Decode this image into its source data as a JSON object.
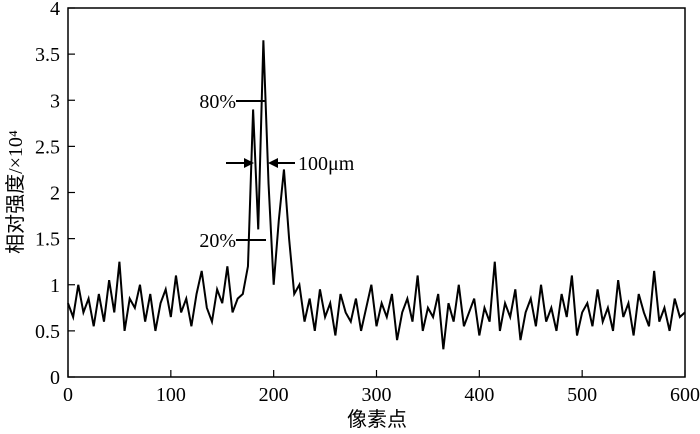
{
  "chart_data": {
    "type": "line",
    "xlabel": "像素点",
    "ylabel": "相对强度/×10⁴",
    "annotations": [
      "80%",
      "20%",
      "100μm"
    ],
    "color": "#000000",
    "x": [
      0,
      5,
      10,
      15,
      20,
      25,
      30,
      35,
      40,
      45,
      50,
      55,
      60,
      65,
      70,
      75,
      80,
      85,
      90,
      95,
      100,
      105,
      110,
      115,
      120,
      125,
      130,
      135,
      140,
      145,
      150,
      155,
      160,
      165,
      170,
      175,
      180,
      185,
      190,
      195,
      200,
      205,
      210,
      215,
      220,
      225,
      230,
      235,
      240,
      245,
      250,
      255,
      260,
      265,
      270,
      275,
      280,
      285,
      290,
      295,
      300,
      305,
      310,
      315,
      320,
      325,
      330,
      335,
      340,
      345,
      350,
      355,
      360,
      365,
      370,
      375,
      380,
      385,
      390,
      395,
      400,
      405,
      410,
      415,
      420,
      425,
      430,
      435,
      440,
      445,
      450,
      455,
      460,
      465,
      470,
      475,
      480,
      485,
      490,
      495,
      500,
      505,
      510,
      515,
      520,
      525,
      530,
      535,
      540,
      545,
      550,
      555,
      560,
      565,
      570,
      575,
      580,
      585,
      590,
      595,
      600
    ],
    "values": [
      0.8,
      0.65,
      1.0,
      0.7,
      0.85,
      0.55,
      0.9,
      0.6,
      1.05,
      0.7,
      1.25,
      0.5,
      0.85,
      0.75,
      1.0,
      0.6,
      0.9,
      0.5,
      0.8,
      0.95,
      0.65,
      1.1,
      0.7,
      0.85,
      0.55,
      0.9,
      1.15,
      0.75,
      0.6,
      0.95,
      0.8,
      1.2,
      0.7,
      0.85,
      0.9,
      1.2,
      2.9,
      1.6,
      3.65,
      2.1,
      1.0,
      1.7,
      2.25,
      1.5,
      0.9,
      1.0,
      0.6,
      0.85,
      0.5,
      0.95,
      0.65,
      0.8,
      0.45,
      0.9,
      0.7,
      0.6,
      0.85,
      0.5,
      0.75,
      1.0,
      0.55,
      0.8,
      0.65,
      0.9,
      0.4,
      0.7,
      0.85,
      0.6,
      1.1,
      0.5,
      0.75,
      0.65,
      0.9,
      0.3,
      0.8,
      0.6,
      1.0,
      0.55,
      0.7,
      0.85,
      0.45,
      0.75,
      0.6,
      1.25,
      0.5,
      0.8,
      0.65,
      0.95,
      0.4,
      0.7,
      0.85,
      0.55,
      1.0,
      0.6,
      0.75,
      0.5,
      0.9,
      0.65,
      1.1,
      0.45,
      0.7,
      0.8,
      0.55,
      0.95,
      0.6,
      0.75,
      0.5,
      1.05,
      0.65,
      0.8,
      0.45,
      0.9,
      0.7,
      0.55,
      1.15,
      0.6,
      0.75,
      0.5,
      0.85,
      0.65,
      0.7
    ],
    "xlim": [
      0,
      600
    ],
    "xticks": [
      0,
      100,
      200,
      300,
      400,
      500,
      600
    ],
    "ylim": [
      0,
      4
    ],
    "yticks": [
      0,
      0.5,
      1,
      1.5,
      2,
      2.5,
      3,
      3.5,
      4
    ]
  }
}
